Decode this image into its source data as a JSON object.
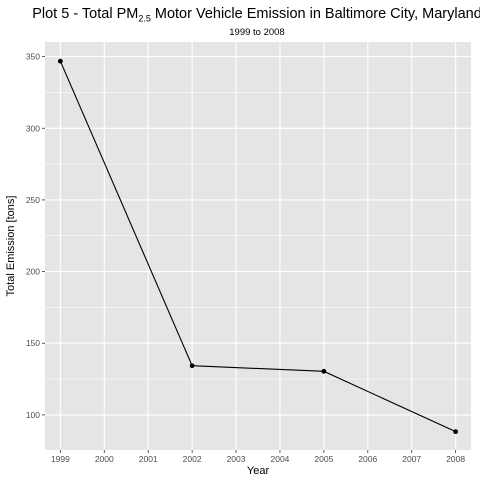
{
  "chart_data": {
    "type": "line",
    "title_parts": [
      "Plot 5 - Total PM",
      "2.5",
      " Motor Vehicle Emission in Baltimore City, Maryland"
    ],
    "subtitle": "1999 to 2008",
    "xlabel": "Year",
    "ylabel": "Total Emission [tons]",
    "x_ticks": [
      1999,
      2000,
      2001,
      2002,
      2003,
      2004,
      2005,
      2006,
      2007,
      2008
    ],
    "y_ticks": [
      100,
      150,
      200,
      250,
      300,
      350
    ],
    "xlim": [
      1998.65,
      2008.35
    ],
    "ylim": [
      75.5,
      360.2
    ],
    "grid": true,
    "series": [
      {
        "x": [
          1999,
          2002,
          2005,
          2008
        ],
        "values": [
          346.8,
          134.3,
          130.4,
          88.3
        ]
      }
    ]
  },
  "colors": {
    "panel_background": "#e5e5e5",
    "grid_major": "#ffffff",
    "line": "#000000",
    "point": "#000000"
  }
}
